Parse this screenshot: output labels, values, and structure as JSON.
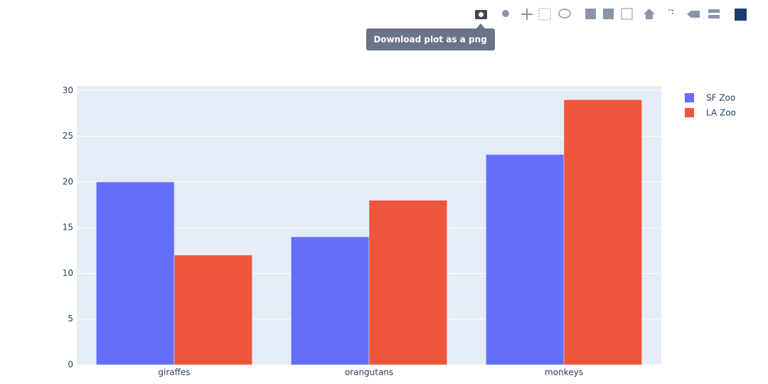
{
  "chart_data": {
    "type": "bar",
    "categories": [
      "giraffes",
      "orangutans",
      "monkeys"
    ],
    "series": [
      {
        "name": "SF Zoo",
        "color": "#636efa",
        "values": [
          20,
          14,
          23
        ]
      },
      {
        "name": "LA Zoo",
        "color": "#ef553b",
        "values": [
          12,
          18,
          29
        ]
      }
    ],
    "ylim": [
      0,
      30.5
    ],
    "yticks": [
      0,
      5,
      10,
      15,
      20,
      25,
      30
    ],
    "grid": true,
    "legend": "top-right"
  },
  "tooltip": "Download plot as a png"
}
